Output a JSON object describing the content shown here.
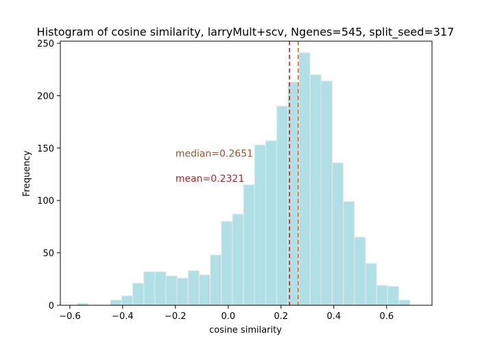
{
  "chart_data": {
    "type": "bar",
    "title": "Histogram of cosine similarity, larryMult+scv, Ngenes=545, split_seed=317",
    "xlabel": "cosine similarity",
    "ylabel": "Frequency",
    "xlim": [
      -0.636,
      0.772
    ],
    "ylim": [
      0,
      252
    ],
    "xticks": [
      -0.6,
      -0.4,
      -0.2,
      0.0,
      0.2,
      0.4,
      0.6
    ],
    "xtick_labels": [
      "−0.6",
      "−0.4",
      "−0.2",
      "0.0",
      "0.2",
      "0.4",
      "0.6"
    ],
    "yticks": [
      0,
      50,
      100,
      150,
      200,
      250
    ],
    "ytick_labels": [
      "0",
      "50",
      "100",
      "150",
      "200",
      "250"
    ],
    "grid": false,
    "bar_color": "#b0e0e6",
    "bar_edge_color": "#e8e8e8",
    "bins": [
      {
        "x0": -0.572,
        "x1": -0.53,
        "count": 2
      },
      {
        "x0": -0.53,
        "x1": -0.488,
        "count": 0
      },
      {
        "x0": -0.488,
        "x1": -0.446,
        "count": 0
      },
      {
        "x0": -0.446,
        "x1": -0.404,
        "count": 5
      },
      {
        "x0": -0.404,
        "x1": -0.362,
        "count": 9
      },
      {
        "x0": -0.362,
        "x1": -0.32,
        "count": 21
      },
      {
        "x0": -0.32,
        "x1": -0.278,
        "count": 32
      },
      {
        "x0": -0.278,
        "x1": -0.236,
        "count": 32
      },
      {
        "x0": -0.236,
        "x1": -0.194,
        "count": 28
      },
      {
        "x0": -0.194,
        "x1": -0.152,
        "count": 26
      },
      {
        "x0": -0.152,
        "x1": -0.11,
        "count": 33
      },
      {
        "x0": -0.11,
        "x1": -0.068,
        "count": 29
      },
      {
        "x0": -0.068,
        "x1": -0.026,
        "count": 48
      },
      {
        "x0": -0.026,
        "x1": 0.016,
        "count": 80
      },
      {
        "x0": 0.016,
        "x1": 0.058,
        "count": 87
      },
      {
        "x0": 0.058,
        "x1": 0.1,
        "count": 115
      },
      {
        "x0": 0.1,
        "x1": 0.142,
        "count": 153
      },
      {
        "x0": 0.142,
        "x1": 0.184,
        "count": 157
      },
      {
        "x0": 0.184,
        "x1": 0.226,
        "count": 190
      },
      {
        "x0": 0.226,
        "x1": 0.268,
        "count": 213
      },
      {
        "x0": 0.268,
        "x1": 0.31,
        "count": 241
      },
      {
        "x0": 0.31,
        "x1": 0.352,
        "count": 220
      },
      {
        "x0": 0.352,
        "x1": 0.394,
        "count": 214
      },
      {
        "x0": 0.394,
        "x1": 0.436,
        "count": 136
      },
      {
        "x0": 0.436,
        "x1": 0.478,
        "count": 99
      },
      {
        "x0": 0.478,
        "x1": 0.52,
        "count": 65
      },
      {
        "x0": 0.52,
        "x1": 0.562,
        "count": 40
      },
      {
        "x0": 0.562,
        "x1": 0.604,
        "count": 19
      },
      {
        "x0": 0.604,
        "x1": 0.646,
        "count": 18
      },
      {
        "x0": 0.646,
        "x1": 0.688,
        "count": 5
      }
    ],
    "reference_lines": [
      {
        "name": "mean",
        "x": 0.2321,
        "color": "#b22222",
        "style": "dashed"
      },
      {
        "name": "median",
        "x": 0.2651,
        "color": "#d2691e",
        "style": "dashed"
      }
    ],
    "annotations": [
      {
        "text": "median=0.2651",
        "x": -0.2,
        "y": 145,
        "color": "#a0522d"
      },
      {
        "text": "mean=0.2321",
        "x": -0.2,
        "y": 121,
        "color": "#b22222"
      }
    ]
  }
}
